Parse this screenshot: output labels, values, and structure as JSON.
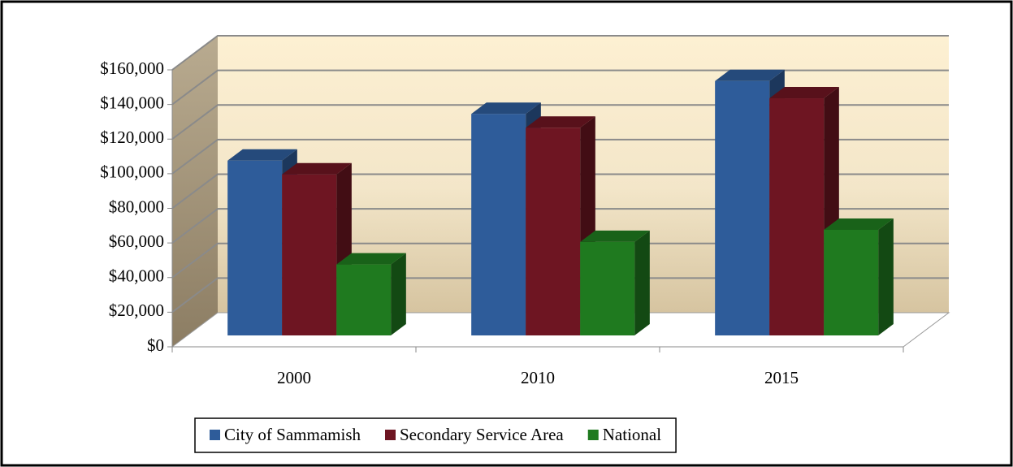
{
  "chart_data": {
    "type": "bar3d",
    "categories": [
      "2000",
      "2010",
      "2015"
    ],
    "series": [
      {
        "name": "City of Sammamish",
        "color": "#2e5c9a",
        "values": [
          101000,
          128000,
          147000
        ]
      },
      {
        "name": "Secondary Service Area",
        "color": "#6e1522",
        "values": [
          93000,
          120000,
          137000
        ]
      },
      {
        "name": "National",
        "color": "#1f7a1f",
        "values": [
          41000,
          54000,
          61000
        ]
      }
    ],
    "ylim": [
      0,
      160000
    ],
    "yticks": [
      {
        "value": 0,
        "label": "$0"
      },
      {
        "value": 20000,
        "label": "$20,000"
      },
      {
        "value": 40000,
        "label": "$40,000"
      },
      {
        "value": 60000,
        "label": "$60,000"
      },
      {
        "value": 80000,
        "label": "$80,000"
      },
      {
        "value": 100000,
        "label": "$100,000"
      },
      {
        "value": 120000,
        "label": "$120,000"
      },
      {
        "value": 140000,
        "label": "$140,000"
      },
      {
        "value": 160000,
        "label": "$160,000"
      }
    ],
    "grid": true,
    "legend": "bottom"
  }
}
